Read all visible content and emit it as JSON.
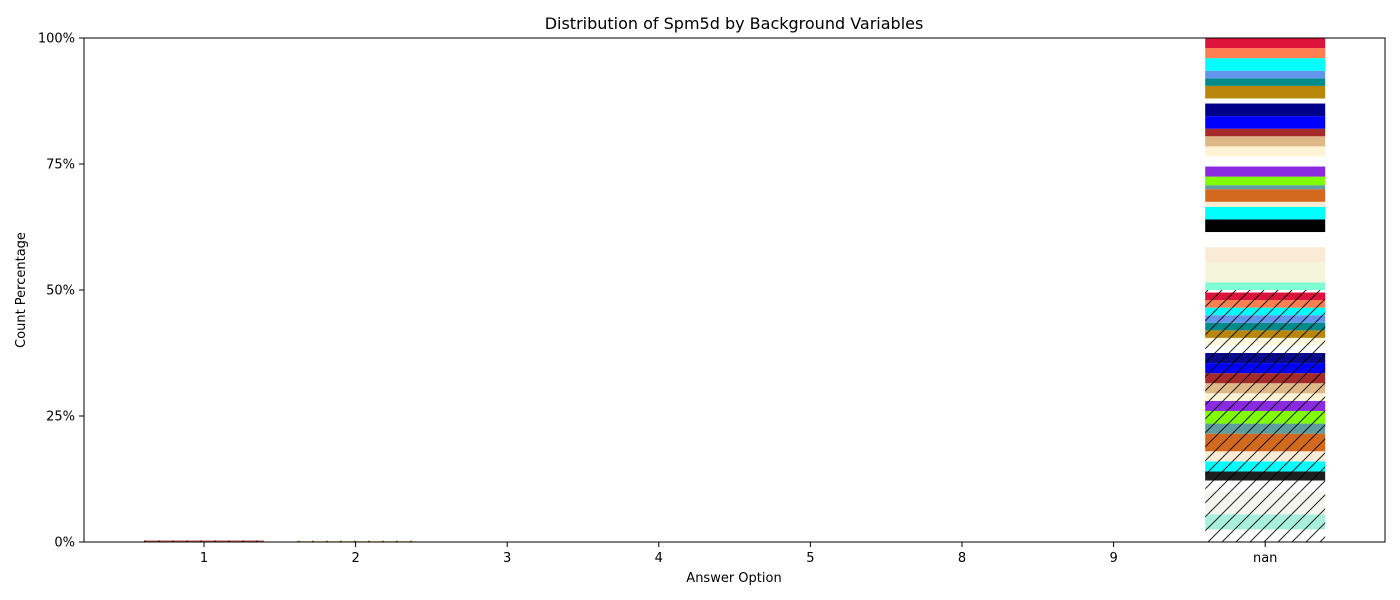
{
  "chart_data": {
    "type": "bar",
    "stacked": true,
    "title": "Distribution of Spm5d by Background Variables",
    "xlabel": "Answer Option",
    "ylabel": "Count Percentage",
    "categories": [
      "1",
      "2",
      "3",
      "4",
      "5",
      "8",
      "9",
      "nan"
    ],
    "y_ticks": [
      "0%",
      "25%",
      "50%",
      "75%",
      "100%"
    ],
    "ylim": [
      0,
      100
    ],
    "grid": false,
    "legend": "none",
    "segments": {
      "1": [
        {
          "start": 0,
          "end": 0.3,
          "color": "#c0504d",
          "hatch": true
        }
      ],
      "2": [
        {
          "start": 0,
          "end": 0.2,
          "color": "#f5deb3",
          "hatch": true
        }
      ],
      "3": [],
      "4": [],
      "5": [],
      "8": [],
      "9": [],
      "nan": [
        {
          "start": 0.0,
          "end": 2.5,
          "color": "#ffffff",
          "hatch": true
        },
        {
          "start": 2.5,
          "end": 5.5,
          "color": "#a8f0dc",
          "hatch": true
        },
        {
          "start": 5.5,
          "end": 10.0,
          "color": "#f5f5f0",
          "hatch": true
        },
        {
          "start": 10.0,
          "end": 12.2,
          "color": "#ffffff",
          "hatch": true
        },
        {
          "start": 12.2,
          "end": 14.0,
          "color": "#1e1e1e",
          "hatch": true
        },
        {
          "start": 14.0,
          "end": 16.0,
          "color": "#00ffff",
          "hatch": true
        },
        {
          "start": 16.0,
          "end": 18.0,
          "color": "#faebd7",
          "hatch": true
        },
        {
          "start": 18.0,
          "end": 21.5,
          "color": "#d2691e",
          "hatch": true
        },
        {
          "start": 21.5,
          "end": 23.5,
          "color": "#5f9ea0",
          "hatch": true
        },
        {
          "start": 23.5,
          "end": 26.0,
          "color": "#7fff00",
          "hatch": true
        },
        {
          "start": 26.0,
          "end": 28.0,
          "color": "#8a2be2",
          "hatch": true
        },
        {
          "start": 28.0,
          "end": 29.5,
          "color": "#fff3d6",
          "hatch": true
        },
        {
          "start": 29.5,
          "end": 31.5,
          "color": "#deb887",
          "hatch": true
        },
        {
          "start": 31.5,
          "end": 33.5,
          "color": "#a52a2a",
          "hatch": true
        },
        {
          "start": 33.5,
          "end": 35.5,
          "color": "#0000ff",
          "hatch": true
        },
        {
          "start": 35.5,
          "end": 37.5,
          "color": "#0a0a8a",
          "hatch": true
        },
        {
          "start": 37.5,
          "end": 39.0,
          "color": "#ffffff",
          "hatch": true
        },
        {
          "start": 39.0,
          "end": 40.5,
          "color": "#fff8dc",
          "hatch": true
        },
        {
          "start": 40.5,
          "end": 42.0,
          "color": "#b8860b",
          "hatch": true
        },
        {
          "start": 42.0,
          "end": 43.5,
          "color": "#008b8b",
          "hatch": true
        },
        {
          "start": 43.5,
          "end": 45.0,
          "color": "#6495ed",
          "hatch": true
        },
        {
          "start": 45.0,
          "end": 46.5,
          "color": "#00ffff",
          "hatch": true
        },
        {
          "start": 46.5,
          "end": 48.0,
          "color": "#ff7f50",
          "hatch": true
        },
        {
          "start": 48.0,
          "end": 49.5,
          "color": "#dc143c",
          "hatch": true
        },
        {
          "start": 49.5,
          "end": 50.0,
          "color": "#ffffff",
          "hatch": true
        },
        {
          "start": 50.0,
          "end": 51.5,
          "color": "#7fffd4",
          "hatch": false
        },
        {
          "start": 51.5,
          "end": 55.5,
          "color": "#f5f5dc",
          "hatch": false
        },
        {
          "start": 55.5,
          "end": 58.5,
          "color": "#faebd7",
          "hatch": false
        },
        {
          "start": 58.5,
          "end": 61.5,
          "color": "#ffffff",
          "hatch": false
        },
        {
          "start": 61.5,
          "end": 64.0,
          "color": "#000000",
          "hatch": false
        },
        {
          "start": 64.0,
          "end": 66.5,
          "color": "#00ffff",
          "hatch": false
        },
        {
          "start": 66.5,
          "end": 67.5,
          "color": "#faebd7",
          "hatch": false
        },
        {
          "start": 67.5,
          "end": 70.0,
          "color": "#d2691e",
          "hatch": false
        },
        {
          "start": 70.0,
          "end": 70.8,
          "color": "#5f9ea0",
          "hatch": false
        },
        {
          "start": 70.8,
          "end": 72.5,
          "color": "#7fff00",
          "hatch": false
        },
        {
          "start": 72.5,
          "end": 74.5,
          "color": "#8a2be2",
          "hatch": false
        },
        {
          "start": 74.5,
          "end": 76.5,
          "color": "#ffffff",
          "hatch": false
        },
        {
          "start": 76.5,
          "end": 78.5,
          "color": "#fff3d6",
          "hatch": false
        },
        {
          "start": 78.5,
          "end": 80.5,
          "color": "#deb887",
          "hatch": false
        },
        {
          "start": 80.5,
          "end": 82.0,
          "color": "#a52a2a",
          "hatch": false
        },
        {
          "start": 82.0,
          "end": 84.5,
          "color": "#0000ff",
          "hatch": false
        },
        {
          "start": 84.5,
          "end": 87.0,
          "color": "#00008b",
          "hatch": false
        },
        {
          "start": 87.0,
          "end": 88.0,
          "color": "#ffffff",
          "hatch": false
        },
        {
          "start": 88.0,
          "end": 90.5,
          "color": "#b8860b",
          "hatch": false
        },
        {
          "start": 90.5,
          "end": 92.0,
          "color": "#008b8b",
          "hatch": false
        },
        {
          "start": 92.0,
          "end": 93.5,
          "color": "#6495ed",
          "hatch": false
        },
        {
          "start": 93.5,
          "end": 96.0,
          "color": "#00ffff",
          "hatch": false
        },
        {
          "start": 96.0,
          "end": 98.0,
          "color": "#ff7f50",
          "hatch": false
        },
        {
          "start": 98.0,
          "end": 100.0,
          "color": "#dc143c",
          "hatch": false
        }
      ]
    }
  }
}
